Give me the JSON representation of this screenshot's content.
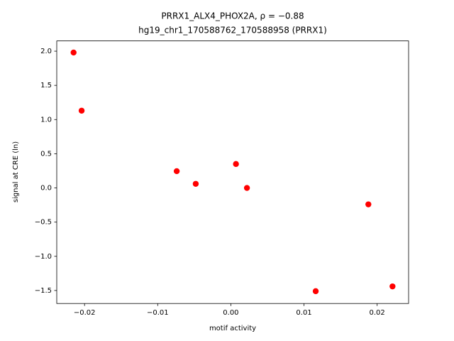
{
  "chart_data": {
    "type": "scatter",
    "title": "PRRX1_ALX4_PHOX2A, ρ = −0.88",
    "subtitle": "hg19_chr1_170588762_170588958 (PRRX1)",
    "x_label": "motif activity",
    "y_label": "signal at CRE (ln)",
    "series": [
      {
        "color": "#ff0000",
        "x": [
          -0.0215,
          -0.0204,
          -0.0074,
          -0.0048,
          0.0007,
          0.0022,
          0.0188,
          0.0116,
          0.0221
        ],
        "values": [
          1.98,
          1.13,
          0.245,
          0.06,
          0.35,
          0.0,
          -0.24,
          -1.51,
          -1.44
        ]
      }
    ],
    "xlim": [
      -0.0238,
      0.0243
    ],
    "ylim": [
      -1.69,
      2.15
    ],
    "xticks": [
      {
        "value": -0.02,
        "label": "−0.02"
      },
      {
        "value": -0.01,
        "label": "−0.01"
      },
      {
        "value": 0,
        "label": "0.00"
      },
      {
        "value": 0.01,
        "label": "0.01"
      },
      {
        "value": 0.02,
        "label": "0.02"
      }
    ],
    "yticks": [
      {
        "value": -1.5,
        "label": "−1.5"
      },
      {
        "value": -1,
        "label": "−1.0"
      },
      {
        "value": -0.5,
        "label": "−0.5"
      },
      {
        "value": 0,
        "label": "0.0"
      },
      0.5,
      {
        "value": 1,
        "label": "1.0"
      },
      1.5,
      {
        "value": 2,
        "label": "2.0"
      }
    ],
    "grid": false
  }
}
